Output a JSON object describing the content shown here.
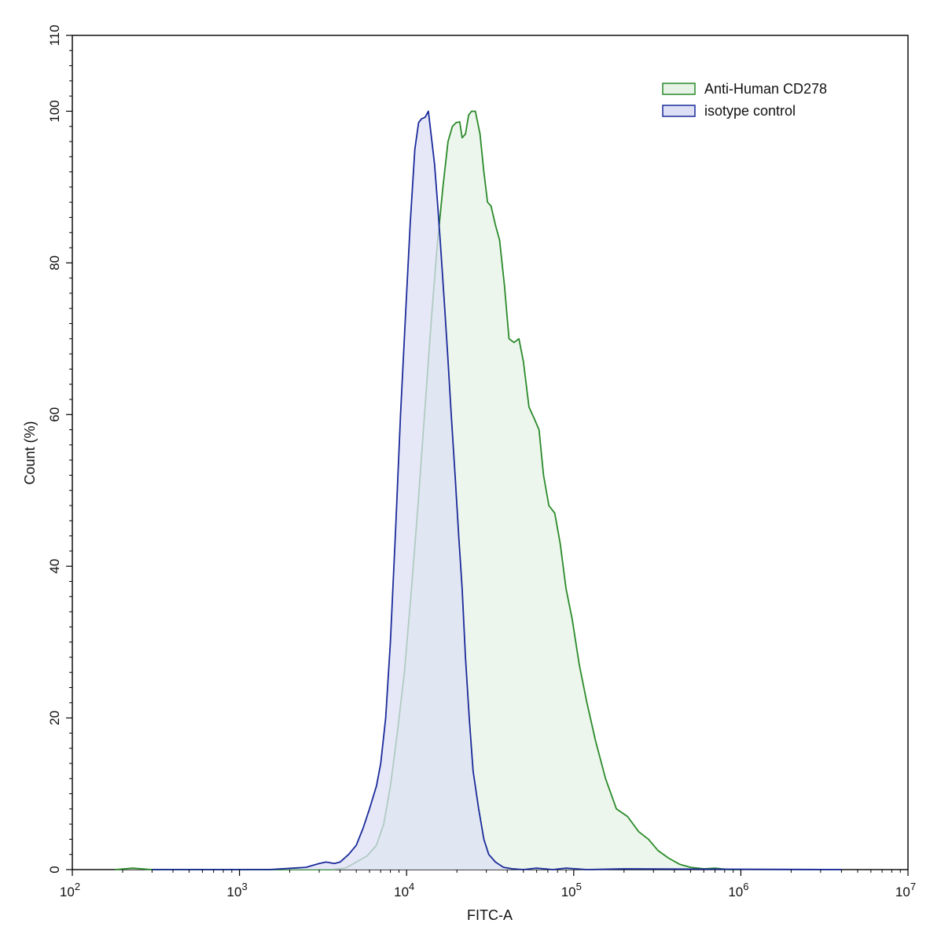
{
  "chart_data": {
    "type": "area",
    "xscale": "log",
    "xlim": [
      100,
      10000000
    ],
    "ylim": [
      0,
      110
    ],
    "xlabel": "FITC-A",
    "ylabel": "Count  (%)",
    "x_ticks": [
      {
        "value": 100,
        "base": "10",
        "exp": "2"
      },
      {
        "value": 1000,
        "base": "10",
        "exp": "3"
      },
      {
        "value": 10000,
        "base": "10",
        "exp": "4"
      },
      {
        "value": 100000,
        "base": "10",
        "exp": "5"
      },
      {
        "value": 1000000,
        "base": "10",
        "exp": "6"
      },
      {
        "value": 10000000,
        "base": "10",
        "exp": "7"
      }
    ],
    "y_ticks": [
      "0",
      "20",
      "40",
      "60",
      "80",
      "100",
      "110"
    ],
    "legend_position": "top-right",
    "series": [
      {
        "name": "Anti-Human CD278",
        "color": "#2a8a2a",
        "fill": "#e6f3e6",
        "x": [
          180,
          230,
          300,
          1500,
          2500,
          3500,
          4300,
          5000,
          5800,
          6600,
          7300,
          8000,
          8800,
          9700,
          10700,
          11700,
          12800,
          14000,
          15200,
          16500,
          17700,
          18800,
          19800,
          20800,
          21500,
          22500,
          23500,
          24500,
          25800,
          27500,
          29000,
          30500,
          32000,
          34000,
          36000,
          38500,
          41000,
          44000,
          47000,
          50000,
          54000,
          58000,
          62000,
          66000,
          71000,
          77000,
          83000,
          90000,
          98000,
          108000,
          120000,
          135000,
          155000,
          180000,
          210000,
          245000,
          280000,
          320000,
          370000,
          430000,
          500000,
          600000,
          700000,
          850000,
          1000000
        ],
        "y": [
          0,
          0.2,
          0,
          0,
          0,
          0,
          0.2,
          1,
          1.8,
          3.2,
          6,
          11,
          18,
          26,
          37,
          48,
          60,
          72,
          82,
          90,
          96,
          98,
          98.5,
          98.6,
          96.5,
          97,
          99.5,
          100,
          100,
          97,
          92,
          88,
          87.5,
          85,
          83,
          77,
          70,
          69.5,
          70,
          67,
          61,
          59.5,
          58,
          52,
          48,
          47,
          43,
          37,
          33,
          27,
          22,
          17,
          12,
          8,
          7,
          5,
          4,
          2.5,
          1.5,
          0.7,
          0.3,
          0.1,
          0.2,
          0,
          0
        ]
      },
      {
        "name": "isotype control",
        "color": "#1a2a9a",
        "fill": "#dde0f5",
        "x": [
          300,
          1000,
          1500,
          2500,
          3000,
          3300,
          3700,
          4000,
          4500,
          5000,
          5500,
          6000,
          6600,
          7000,
          7500,
          8000,
          8600,
          9200,
          9800,
          10500,
          11200,
          11800,
          12300,
          12900,
          13500,
          14000,
          14700,
          15300,
          16000,
          16800,
          17600,
          18500,
          19500,
          20500,
          21500,
          22500,
          23700,
          25000,
          27000,
          29000,
          31000,
          34000,
          38000,
          43000,
          50000,
          60000,
          75000,
          90000,
          120000,
          200000,
          4000000
        ],
        "y": [
          0,
          0,
          0,
          0.3,
          0.8,
          1,
          0.8,
          1,
          2,
          3.2,
          5.5,
          8,
          11,
          14,
          20,
          30,
          45,
          60,
          72,
          85,
          95,
          98.5,
          99,
          99.2,
          100,
          97,
          93,
          88,
          82,
          75,
          68,
          60,
          52,
          44,
          37,
          28,
          20,
          13,
          8,
          4,
          2,
          1,
          0.3,
          0.1,
          0,
          0.2,
          0,
          0.2,
          0,
          0.1,
          0
        ]
      }
    ]
  }
}
